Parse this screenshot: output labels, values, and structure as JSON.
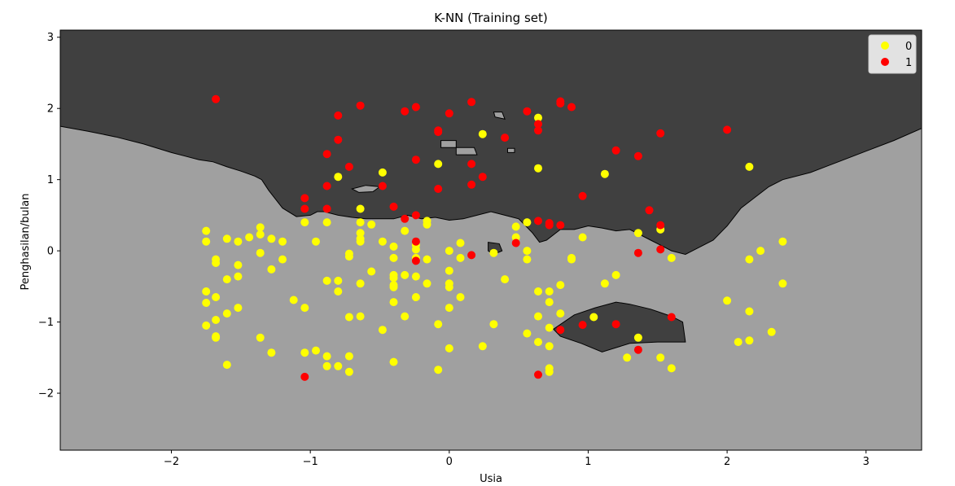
{
  "chart_data": {
    "type": "scatter",
    "title": "K-NN (Training set)",
    "xlabel": "Usia",
    "ylabel": "Penghasilan/bulan",
    "xlim": [
      -2.8,
      3.4
    ],
    "ylim": [
      -2.8,
      3.1
    ],
    "x_ticks": [
      -2,
      -1,
      0,
      1,
      2,
      3
    ],
    "y_ticks": [
      -2,
      -1,
      0,
      1,
      2,
      3
    ],
    "x_tick_labels": [
      "−2",
      "−1",
      "0",
      "1",
      "2",
      "3"
    ],
    "y_tick_labels": [
      "−2",
      "−1",
      "0",
      "1",
      "2",
      "3"
    ],
    "grid": false,
    "legend": {
      "position": "top-right",
      "entries": [
        "0",
        "1"
      ]
    },
    "colors": {
      "class0": "#ffff00",
      "class1": "#ff0000",
      "region0": "#a0a0a0",
      "region1": "#404040"
    },
    "decision_regions": [
      {
        "class": "1",
        "boundary": [
          [
            -2.8,
            1.75
          ],
          [
            -2.6,
            1.68
          ],
          [
            -2.4,
            1.6
          ],
          [
            -2.2,
            1.5
          ],
          [
            -2.0,
            1.38
          ],
          [
            -1.9,
            1.33
          ],
          [
            -1.8,
            1.28
          ],
          [
            -1.7,
            1.25
          ],
          [
            -1.6,
            1.18
          ],
          [
            -1.5,
            1.12
          ],
          [
            -1.4,
            1.05
          ],
          [
            -1.35,
            1.0
          ],
          [
            -1.3,
            0.85
          ],
          [
            -1.2,
            0.6
          ],
          [
            -1.1,
            0.48
          ],
          [
            -1.0,
            0.5
          ],
          [
            -0.95,
            0.55
          ],
          [
            -0.9,
            0.55
          ],
          [
            -0.8,
            0.5
          ],
          [
            -0.7,
            0.47
          ],
          [
            -0.6,
            0.45
          ],
          [
            -0.5,
            0.45
          ],
          [
            -0.4,
            0.45
          ],
          [
            -0.3,
            0.5
          ],
          [
            -0.2,
            0.45
          ],
          [
            -0.1,
            0.47
          ],
          [
            0.0,
            0.43
          ],
          [
            0.1,
            0.45
          ],
          [
            0.2,
            0.5
          ],
          [
            0.3,
            0.55
          ],
          [
            0.4,
            0.5
          ],
          [
            0.5,
            0.45
          ],
          [
            0.55,
            0.35
          ],
          [
            0.6,
            0.25
          ],
          [
            0.65,
            0.12
          ],
          [
            0.7,
            0.15
          ],
          [
            0.8,
            0.3
          ],
          [
            0.9,
            0.3
          ],
          [
            1.0,
            0.35
          ],
          [
            1.1,
            0.32
          ],
          [
            1.2,
            0.28
          ],
          [
            1.3,
            0.3
          ],
          [
            1.35,
            0.25
          ],
          [
            1.45,
            0.15
          ],
          [
            1.55,
            0.05
          ],
          [
            1.6,
            0.0
          ],
          [
            1.7,
            -0.05
          ],
          [
            1.8,
            0.05
          ],
          [
            1.9,
            0.15
          ],
          [
            2.0,
            0.35
          ],
          [
            2.1,
            0.6
          ],
          [
            2.2,
            0.75
          ],
          [
            2.3,
            0.9
          ],
          [
            2.4,
            1.0
          ],
          [
            2.6,
            1.1
          ],
          [
            2.8,
            1.25
          ],
          [
            3.0,
            1.4
          ],
          [
            3.2,
            1.55
          ],
          [
            3.4,
            1.72
          ],
          [
            3.4,
            3.1
          ],
          [
            -2.8,
            3.1
          ]
        ]
      },
      {
        "class": "1",
        "boundary": [
          [
            0.75,
            -1.1
          ],
          [
            0.9,
            -0.9
          ],
          [
            1.05,
            -0.8
          ],
          [
            1.2,
            -0.72
          ],
          [
            1.3,
            -0.75
          ],
          [
            1.45,
            -0.82
          ],
          [
            1.6,
            -0.92
          ],
          [
            1.68,
            -1.0
          ],
          [
            1.7,
            -1.28
          ],
          [
            1.5,
            -1.28
          ],
          [
            1.3,
            -1.3
          ],
          [
            1.1,
            -1.42
          ],
          [
            0.95,
            -1.3
          ],
          [
            0.8,
            -1.2
          ]
        ]
      },
      {
        "class": "1",
        "boundary": [
          [
            0.28,
            0.12
          ],
          [
            0.36,
            0.1
          ],
          [
            0.38,
            0.0
          ],
          [
            0.32,
            -0.05
          ],
          [
            0.28,
            0.0
          ]
        ]
      },
      {
        "class": "0",
        "boundary": [
          [
            -0.7,
            0.87
          ],
          [
            -0.6,
            0.92
          ],
          [
            -0.5,
            0.9
          ],
          [
            -0.55,
            0.83
          ],
          [
            -0.65,
            0.82
          ]
        ]
      },
      {
        "class": "0",
        "boundary": [
          [
            -0.06,
            1.55
          ],
          [
            0.05,
            1.55
          ],
          [
            0.05,
            1.45
          ],
          [
            -0.06,
            1.45
          ]
        ]
      },
      {
        "class": "0",
        "boundary": [
          [
            0.05,
            1.45
          ],
          [
            0.18,
            1.45
          ],
          [
            0.2,
            1.35
          ],
          [
            0.05,
            1.35
          ]
        ]
      },
      {
        "class": "0",
        "boundary": [
          [
            0.32,
            1.95
          ],
          [
            0.38,
            1.95
          ],
          [
            0.4,
            1.85
          ],
          [
            0.33,
            1.88
          ]
        ]
      },
      {
        "class": "0",
        "boundary": [
          [
            0.42,
            1.44
          ],
          [
            0.47,
            1.44
          ],
          [
            0.47,
            1.38
          ],
          [
            0.42,
            1.38
          ]
        ]
      }
    ],
    "series": [
      {
        "name": "0",
        "points": [
          [
            -1.75,
            0.28
          ],
          [
            -1.75,
            0.13
          ],
          [
            -1.75,
            -0.57
          ],
          [
            -1.75,
            -0.73
          ],
          [
            -1.75,
            -1.05
          ],
          [
            -1.68,
            -0.12
          ],
          [
            -1.68,
            -0.17
          ],
          [
            -1.68,
            -0.65
          ],
          [
            -1.68,
            -0.97
          ],
          [
            -1.68,
            -1.2
          ],
          [
            -1.68,
            -1.22
          ],
          [
            -1.6,
            0.17
          ],
          [
            -1.6,
            -0.4
          ],
          [
            -1.6,
            -0.88
          ],
          [
            -1.6,
            -1.6
          ],
          [
            -1.52,
            0.13
          ],
          [
            -1.52,
            -0.2
          ],
          [
            -1.52,
            -0.36
          ],
          [
            -1.52,
            -0.8
          ],
          [
            -1.44,
            0.19
          ],
          [
            -1.36,
            0.33
          ],
          [
            -1.36,
            0.23
          ],
          [
            -1.36,
            -0.03
          ],
          [
            -1.36,
            -1.22
          ],
          [
            -1.28,
            0.17
          ],
          [
            -1.28,
            -0.26
          ],
          [
            -1.28,
            -1.43
          ],
          [
            -1.2,
            0.13
          ],
          [
            -1.2,
            -0.12
          ],
          [
            -1.12,
            -0.69
          ],
          [
            -1.04,
            0.4
          ],
          [
            -1.04,
            -0.8
          ],
          [
            -1.04,
            -1.43
          ],
          [
            -0.96,
            0.13
          ],
          [
            -0.96,
            -1.4
          ],
          [
            -0.88,
            0.4
          ],
          [
            -0.88,
            -0.42
          ],
          [
            -0.88,
            -1.48
          ],
          [
            -0.88,
            -1.62
          ],
          [
            -0.8,
            1.04
          ],
          [
            -0.8,
            -0.42
          ],
          [
            -0.8,
            -0.57
          ],
          [
            -0.8,
            -1.62
          ],
          [
            -0.72,
            -0.04
          ],
          [
            -0.72,
            -0.08
          ],
          [
            -0.72,
            -0.93
          ],
          [
            -0.72,
            -1.48
          ],
          [
            -0.72,
            -1.7
          ],
          [
            -0.64,
            0.59
          ],
          [
            -0.64,
            0.4
          ],
          [
            -0.64,
            0.25
          ],
          [
            -0.64,
            0.17
          ],
          [
            -0.64,
            0.13
          ],
          [
            -0.64,
            -0.46
          ],
          [
            -0.64,
            -0.92
          ],
          [
            -0.56,
            0.37
          ],
          [
            -0.56,
            -0.29
          ],
          [
            -0.48,
            1.1
          ],
          [
            -0.48,
            0.13
          ],
          [
            -0.48,
            -1.11
          ],
          [
            -0.4,
            0.06
          ],
          [
            -0.4,
            -0.1
          ],
          [
            -0.4,
            -0.34
          ],
          [
            -0.4,
            -0.38
          ],
          [
            -0.4,
            -0.48
          ],
          [
            -0.4,
            -0.51
          ],
          [
            -0.4,
            -0.72
          ],
          [
            -0.4,
            -1.56
          ],
          [
            -0.32,
            0.28
          ],
          [
            -0.32,
            -0.34
          ],
          [
            -0.32,
            -0.92
          ],
          [
            -0.24,
            0.08
          ],
          [
            -0.24,
            0.02
          ],
          [
            -0.24,
            -0.1
          ],
          [
            -0.24,
            -0.36
          ],
          [
            -0.24,
            -0.65
          ],
          [
            -0.16,
            0.42
          ],
          [
            -0.16,
            0.37
          ],
          [
            -0.16,
            -0.12
          ],
          [
            -0.16,
            -0.46
          ],
          [
            -0.08,
            1.22
          ],
          [
            -0.08,
            -1.03
          ],
          [
            -0.08,
            -1.67
          ],
          [
            0,
            0.0
          ],
          [
            0,
            -0.28
          ],
          [
            0,
            -0.46
          ],
          [
            0,
            -0.51
          ],
          [
            0,
            -0.8
          ],
          [
            0,
            -1.37
          ],
          [
            0.08,
            0.11
          ],
          [
            0.08,
            -0.1
          ],
          [
            0.08,
            -0.65
          ],
          [
            0.24,
            1.64
          ],
          [
            0.24,
            -1.34
          ],
          [
            0.32,
            -0.03
          ],
          [
            0.32,
            -1.03
          ],
          [
            0.4,
            -0.4
          ],
          [
            0.48,
            0.34
          ],
          [
            0.48,
            0.19
          ],
          [
            0.56,
            0.4
          ],
          [
            0.56,
            0.0
          ],
          [
            0.56,
            -0.12
          ],
          [
            0.56,
            -1.16
          ],
          [
            0.64,
            1.87
          ],
          [
            0.64,
            1.16
          ],
          [
            0.64,
            -0.57
          ],
          [
            0.64,
            -0.92
          ],
          [
            0.64,
            -1.28
          ],
          [
            0.72,
            -0.57
          ],
          [
            0.72,
            -0.72
          ],
          [
            0.72,
            -1.08
          ],
          [
            0.72,
            -1.34
          ],
          [
            0.72,
            -1.65
          ],
          [
            0.72,
            -1.7
          ],
          [
            0.8,
            -0.48
          ],
          [
            0.8,
            -0.88
          ],
          [
            0.88,
            -0.1
          ],
          [
            0.88,
            -0.12
          ],
          [
            0.96,
            0.19
          ],
          [
            1.04,
            -0.93
          ],
          [
            1.12,
            1.08
          ],
          [
            1.12,
            -0.46
          ],
          [
            1.2,
            -0.34
          ],
          [
            1.28,
            -1.5
          ],
          [
            1.36,
            0.25
          ],
          [
            1.36,
            -1.22
          ],
          [
            1.52,
            0.3
          ],
          [
            1.52,
            -1.5
          ],
          [
            1.6,
            -0.1
          ],
          [
            1.6,
            -1.65
          ],
          [
            2.0,
            -0.7
          ],
          [
            2.08,
            -1.28
          ],
          [
            2.16,
            1.18
          ],
          [
            2.16,
            -0.12
          ],
          [
            2.16,
            -0.85
          ],
          [
            2.16,
            -1.26
          ],
          [
            2.24,
            0.0
          ],
          [
            2.32,
            -1.14
          ],
          [
            2.4,
            0.13
          ],
          [
            2.4,
            -0.46
          ]
        ]
      },
      {
        "name": "1",
        "points": [
          [
            -1.68,
            2.13
          ],
          [
            -1.04,
            0.74
          ],
          [
            -1.04,
            0.59
          ],
          [
            -1.04,
            -1.77
          ],
          [
            -0.88,
            1.36
          ],
          [
            -0.88,
            0.91
          ],
          [
            -0.88,
            0.59
          ],
          [
            -0.8,
            1.9
          ],
          [
            -0.8,
            1.56
          ],
          [
            -0.72,
            1.18
          ],
          [
            -0.64,
            2.04
          ],
          [
            -0.48,
            0.91
          ],
          [
            -0.4,
            0.62
          ],
          [
            -0.32,
            1.96
          ],
          [
            -0.32,
            0.45
          ],
          [
            -0.24,
            2.02
          ],
          [
            -0.24,
            1.28
          ],
          [
            -0.24,
            0.5
          ],
          [
            -0.24,
            0.13
          ],
          [
            -0.24,
            -0.14
          ],
          [
            -0.08,
            1.67
          ],
          [
            -0.08,
            1.69
          ],
          [
            -0.08,
            0.87
          ],
          [
            0,
            1.93
          ],
          [
            0.16,
            2.09
          ],
          [
            0.16,
            1.22
          ],
          [
            0.16,
            0.93
          ],
          [
            0.16,
            -0.06
          ],
          [
            0.24,
            1.04
          ],
          [
            0.4,
            1.59
          ],
          [
            0.48,
            0.11
          ],
          [
            0.56,
            1.96
          ],
          [
            0.64,
            1.78
          ],
          [
            0.64,
            1.69
          ],
          [
            0.64,
            0.42
          ],
          [
            0.64,
            -1.74
          ],
          [
            0.72,
            0.39
          ],
          [
            0.72,
            0.36
          ],
          [
            0.8,
            2.1
          ],
          [
            0.8,
            2.07
          ],
          [
            0.8,
            0.36
          ],
          [
            0.8,
            -1.11
          ],
          [
            0.88,
            2.02
          ],
          [
            0.96,
            0.77
          ],
          [
            0.96,
            -1.04
          ],
          [
            1.2,
            1.41
          ],
          [
            1.2,
            -1.03
          ],
          [
            1.36,
            1.33
          ],
          [
            1.36,
            -0.03
          ],
          [
            1.36,
            -1.39
          ],
          [
            1.44,
            0.57
          ],
          [
            1.52,
            1.65
          ],
          [
            1.52,
            0.36
          ],
          [
            1.52,
            0.02
          ],
          [
            1.6,
            -0.93
          ],
          [
            2.0,
            1.7
          ]
        ]
      }
    ]
  }
}
